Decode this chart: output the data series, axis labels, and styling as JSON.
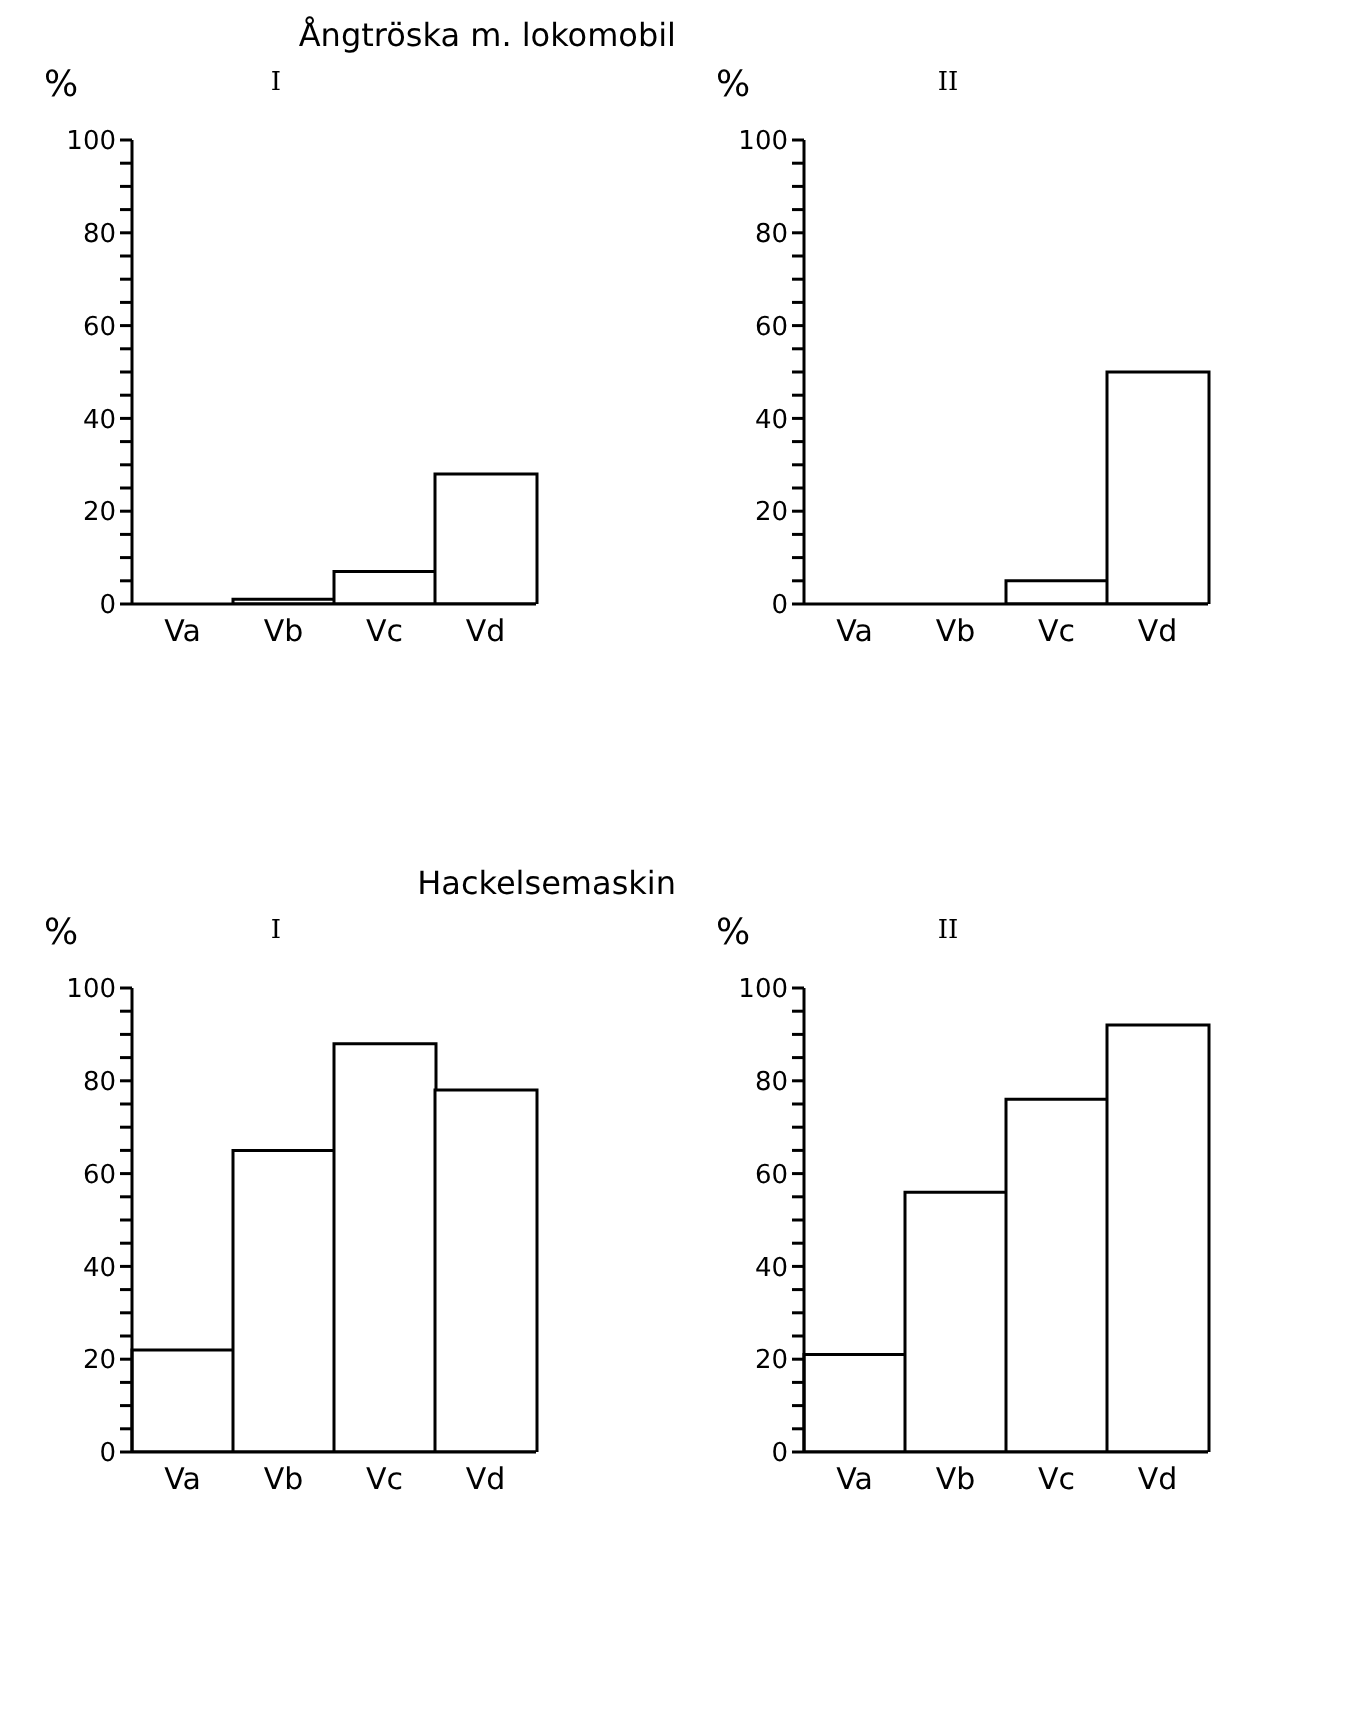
{
  "chart_data": [
    {
      "type": "bar",
      "title": "Ångtröska m. lokomobil",
      "subtitle": "I",
      "ylabel": "%",
      "categories": [
        "Va",
        "Vb",
        "Vc",
        "Vd"
      ],
      "values": [
        0,
        1,
        7,
        28
      ],
      "color": "#ffffff",
      "ylim": [
        0,
        100
      ],
      "yticks": [
        0,
        {
          "value": 5,
          "label": null
        },
        {
          "value": 10,
          "label": null
        },
        {
          "value": 15,
          "label": null
        },
        20,
        {
          "value": 25,
          "label": null
        },
        {
          "value": 30,
          "label": null
        },
        {
          "value": 35,
          "label": null
        },
        40,
        {
          "value": 45,
          "label": null
        },
        {
          "value": 50,
          "label": null
        },
        {
          "value": 55,
          "label": null
        },
        60,
        {
          "value": 65,
          "label": null
        },
        {
          "value": 70,
          "label": null
        },
        {
          "value": 75,
          "label": null
        },
        80,
        {
          "value": 85,
          "label": null
        },
        {
          "value": 90,
          "label": null
        },
        {
          "value": 95,
          "label": null
        },
        100
      ],
      "grid": false,
      "legend": false
    },
    {
      "type": "bar",
      "subtitle": "II",
      "ylabel": "%",
      "categories": [
        "Va",
        "Vb",
        "Vc",
        "Vd"
      ],
      "values": [
        0,
        0,
        5,
        50
      ],
      "color": "#ffffff",
      "ylim": [
        0,
        100
      ],
      "yticks": [
        0,
        {
          "value": 5,
          "label": null
        },
        {
          "value": 10,
          "label": null
        },
        {
          "value": 15,
          "label": null
        },
        20,
        {
          "value": 25,
          "label": null
        },
        {
          "value": 30,
          "label": null
        },
        {
          "value": 35,
          "label": null
        },
        40,
        {
          "value": 45,
          "label": null
        },
        {
          "value": 50,
          "label": null
        },
        {
          "value": 55,
          "label": null
        },
        60,
        {
          "value": 65,
          "label": null
        },
        {
          "value": 70,
          "label": null
        },
        {
          "value": 75,
          "label": null
        },
        80,
        {
          "value": 85,
          "label": null
        },
        {
          "value": 90,
          "label": null
        },
        {
          "value": 95,
          "label": null
        },
        100
      ],
      "grid": false,
      "legend": false
    },
    {
      "type": "bar",
      "title": "Hackelsemaskin",
      "subtitle": "I",
      "ylabel": "%",
      "categories": [
        "Va",
        "Vb",
        "Vc",
        "Vd"
      ],
      "values": [
        22,
        65,
        88,
        78
      ],
      "color": "#ffffff",
      "ylim": [
        0,
        100
      ],
      "yticks": [
        0,
        {
          "value": 5,
          "label": null
        },
        {
          "value": 10,
          "label": null
        },
        {
          "value": 15,
          "label": null
        },
        20,
        {
          "value": 25,
          "label": null
        },
        {
          "value": 30,
          "label": null
        },
        {
          "value": 35,
          "label": null
        },
        40,
        {
          "value": 45,
          "label": null
        },
        {
          "value": 50,
          "label": null
        },
        {
          "value": 55,
          "label": null
        },
        60,
        {
          "value": 65,
          "label": null
        },
        {
          "value": 70,
          "label": null
        },
        {
          "value": 75,
          "label": null
        },
        80,
        {
          "value": 85,
          "label": null
        },
        {
          "value": 90,
          "label": null
        },
        {
          "value": 95,
          "label": null
        },
        100
      ],
      "grid": false,
      "legend": false
    },
    {
      "type": "bar",
      "subtitle": "II",
      "ylabel": "%",
      "categories": [
        "Va",
        "Vb",
        "Vc",
        "Vd"
      ],
      "values": [
        21,
        56,
        76,
        92
      ],
      "color": "#ffffff",
      "ylim": [
        0,
        100
      ],
      "yticks": [
        0,
        {
          "value": 5,
          "label": null
        },
        {
          "value": 10,
          "label": null
        },
        {
          "value": 15,
          "label": null
        },
        20,
        {
          "value": 25,
          "label": null
        },
        {
          "value": 30,
          "label": null
        },
        {
          "value": 35,
          "label": null
        },
        40,
        {
          "value": 45,
          "label": null
        },
        {
          "value": 50,
          "label": null
        },
        {
          "value": 55,
          "label": null
        },
        60,
        {
          "value": 65,
          "label": null
        },
        {
          "value": 70,
          "label": null
        },
        {
          "value": 75,
          "label": null
        },
        80,
        {
          "value": 85,
          "label": null
        },
        {
          "value": 90,
          "label": null
        },
        {
          "value": 95,
          "label": null
        },
        100
      ],
      "grid": false,
      "legend": false
    }
  ]
}
